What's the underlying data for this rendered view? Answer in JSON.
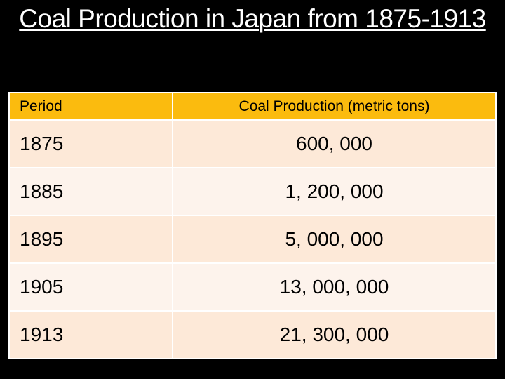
{
  "title": "Coal Production in Japan from 1875-1913",
  "table": {
    "headers": [
      "Period",
      "Coal Production (metric tons)"
    ],
    "rows": [
      [
        "1875",
        "600, 000"
      ],
      [
        "1885",
        "1, 200, 000"
      ],
      [
        "1895",
        "5, 000, 000"
      ],
      [
        "1905",
        "13, 000, 000"
      ],
      [
        "1913",
        "21, 300, 000"
      ]
    ]
  },
  "colors": {
    "background": "#000000",
    "header": "#fbbb0e",
    "row_odd": "#fde9d8",
    "row_even": "#fdf3ec"
  }
}
